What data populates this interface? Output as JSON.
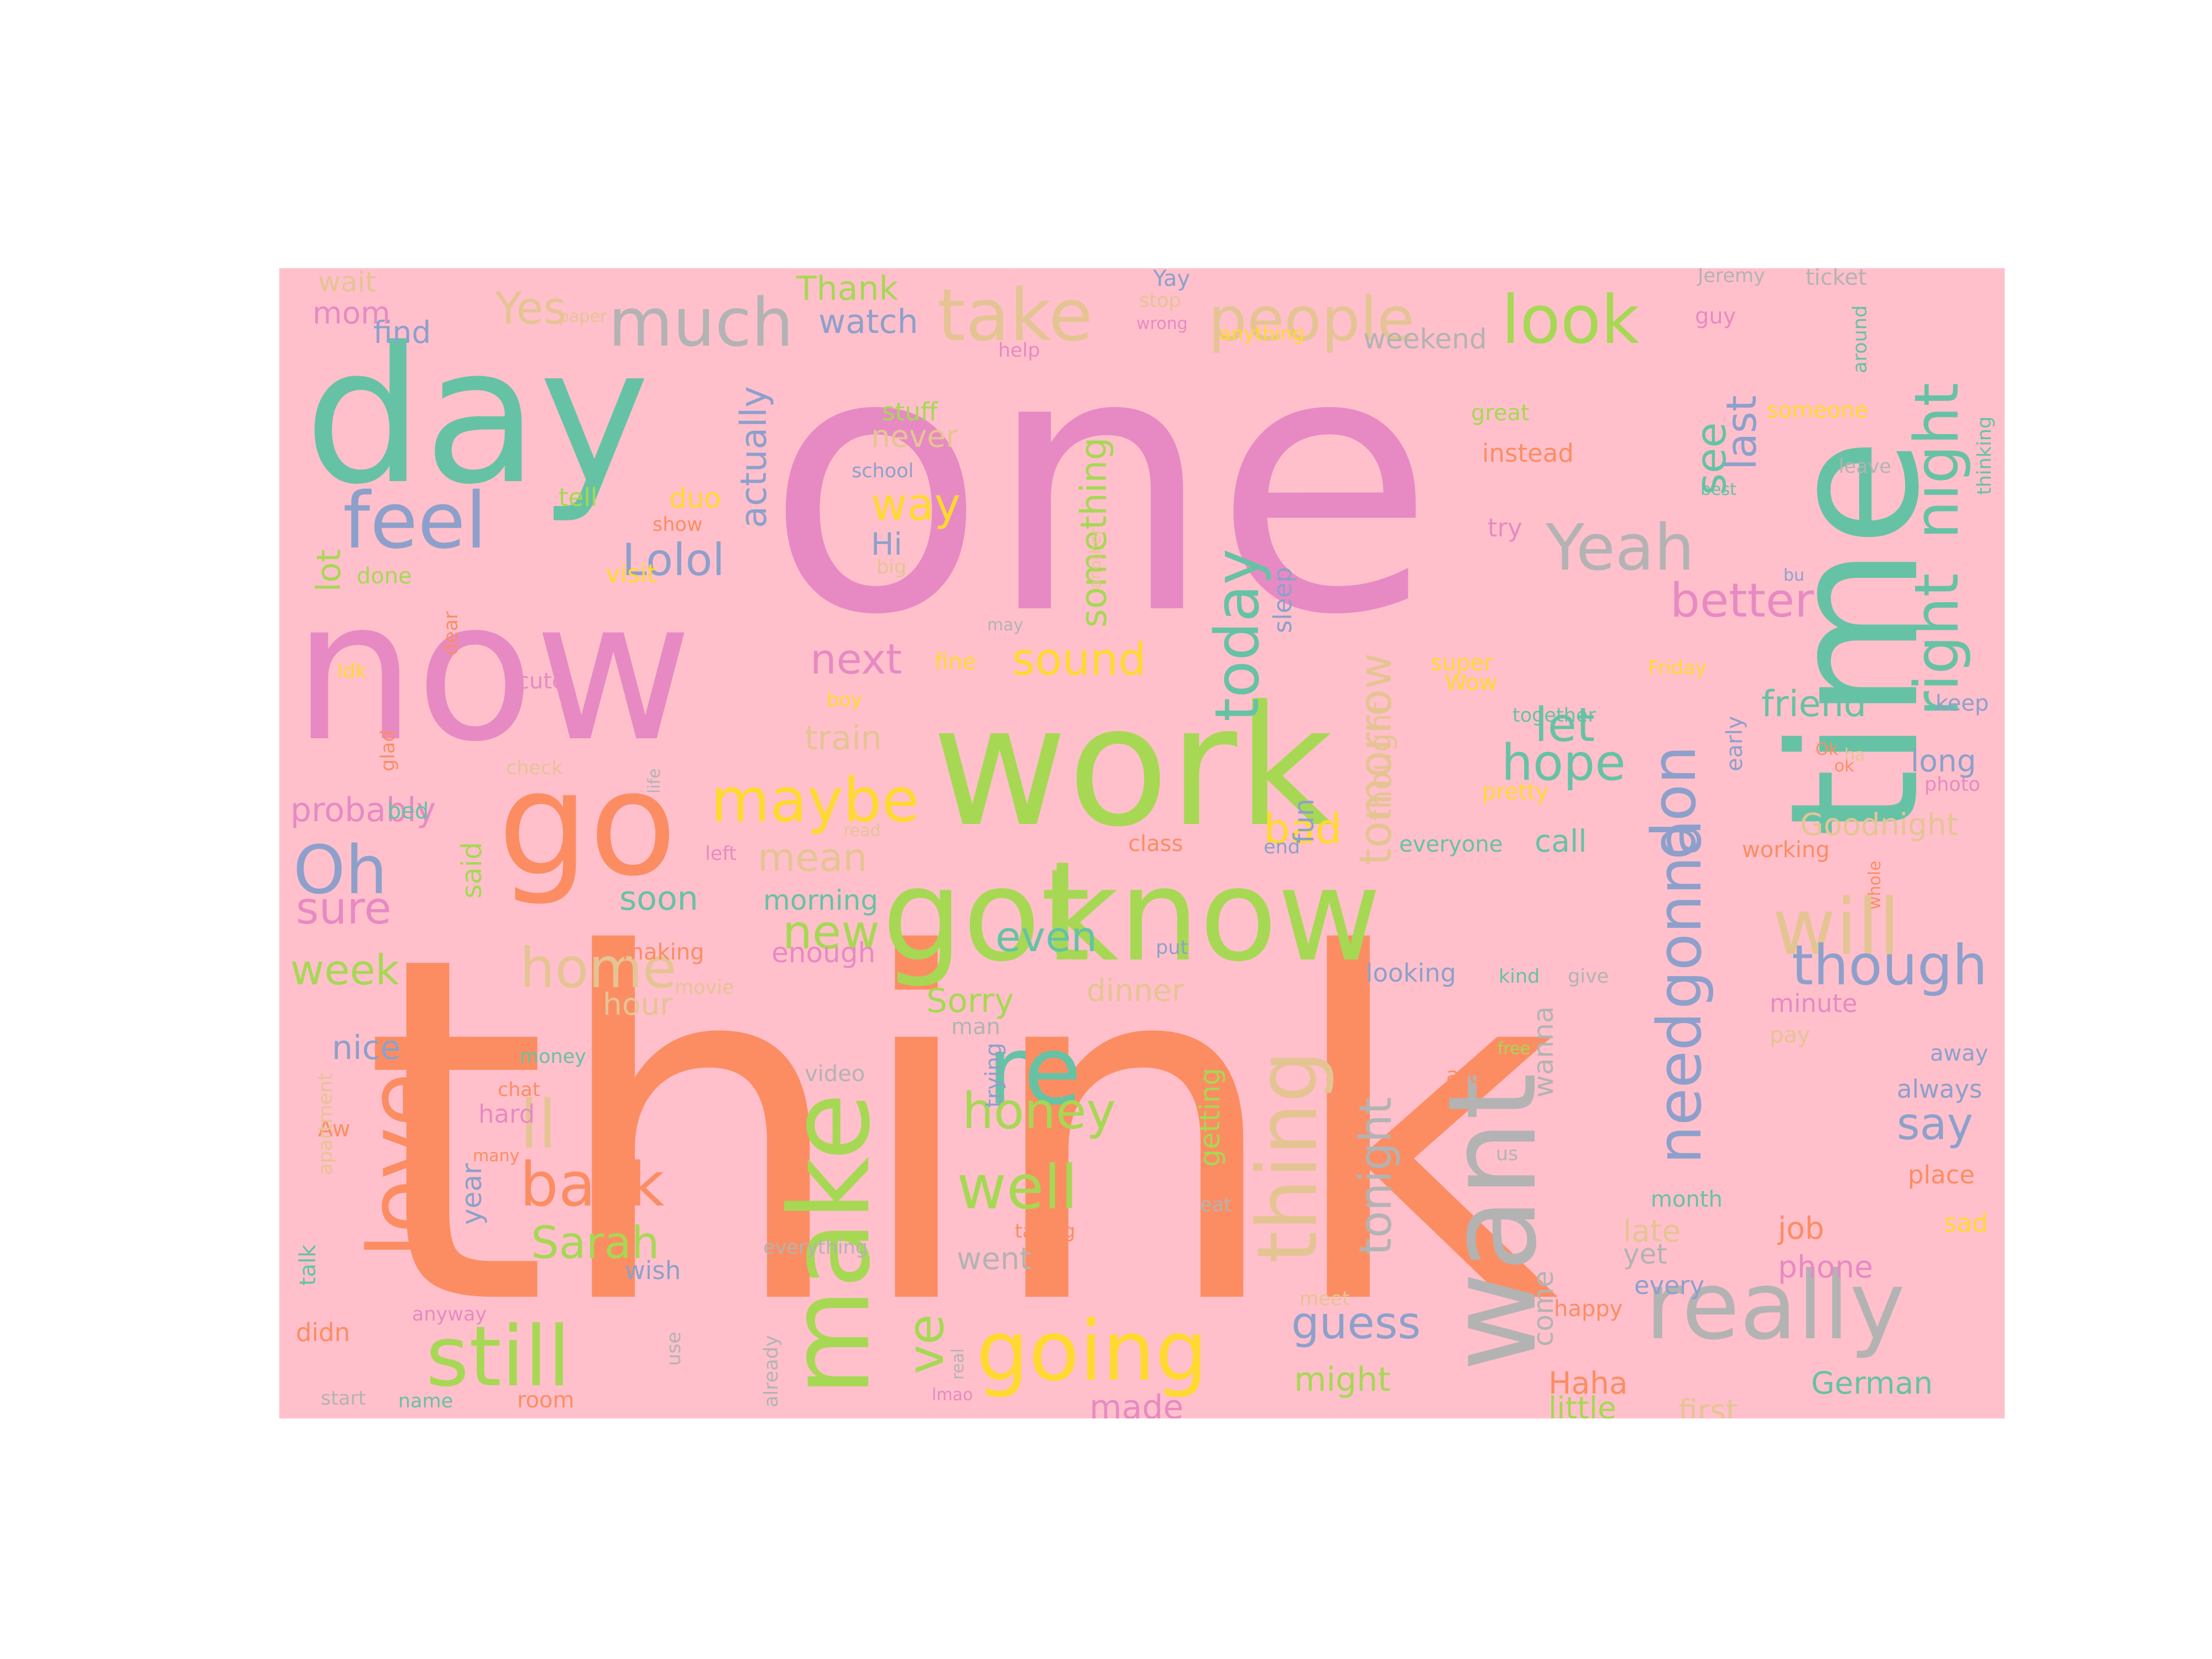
{
  "background": "#ffc0cb",
  "palette": {
    "orange": "#fc8d62",
    "pink": "#e78ac3",
    "teal": "#66c2a5",
    "green": "#a6d854",
    "blue": "#8da0cb",
    "yellow": "#ffd92f",
    "tan": "#e5c494",
    "gray": "#b3b3b3"
  },
  "words": [
    {
      "t": "think",
      "c": "orange",
      "h": false
    },
    {
      "t": "one",
      "c": "pink",
      "h": false
    },
    {
      "t": "work",
      "c": "green",
      "h": false
    },
    {
      "t": "now",
      "c": "pink",
      "h": false
    },
    {
      "t": "day",
      "c": "teal",
      "h": false
    },
    {
      "t": "time",
      "c": "teal",
      "h": true
    },
    {
      "t": "got",
      "c": "green",
      "h": false
    },
    {
      "t": "know",
      "c": "green",
      "h": false
    },
    {
      "t": "go",
      "c": "orange",
      "h": false
    },
    {
      "t": "want",
      "c": "gray",
      "h": true
    },
    {
      "t": "make",
      "c": "green",
      "h": true
    },
    {
      "t": "love",
      "c": "orange",
      "h": true
    },
    {
      "t": "really",
      "c": "gray",
      "h": false
    },
    {
      "t": "going",
      "c": "yellow",
      "h": false
    },
    {
      "t": "still",
      "c": "green",
      "h": false
    },
    {
      "t": "thing",
      "c": "tan",
      "h": true
    },
    {
      "t": "take",
      "c": "tan",
      "h": false
    },
    {
      "t": "much",
      "c": "gray",
      "h": false
    },
    {
      "t": "people",
      "c": "tan",
      "h": false
    },
    {
      "t": "look",
      "c": "green",
      "h": false
    },
    {
      "t": "feel",
      "c": "blue",
      "h": false
    },
    {
      "t": "Yeah",
      "c": "gray",
      "h": false
    },
    {
      "t": "right",
      "c": "teal",
      "h": true
    },
    {
      "t": "night",
      "c": "teal",
      "h": true
    },
    {
      "t": "today",
      "c": "teal",
      "h": true
    },
    {
      "t": "don",
      "c": "blue",
      "h": true
    },
    {
      "t": "re",
      "c": "teal",
      "h": false
    },
    {
      "t": "will",
      "c": "tan",
      "h": false
    },
    {
      "t": "maybe",
      "c": "yellow",
      "h": false
    },
    {
      "t": "Oh",
      "c": "blue",
      "h": false
    },
    {
      "t": "home",
      "c": "tan",
      "h": false
    },
    {
      "t": "ll",
      "c": "tan",
      "h": false
    },
    {
      "t": "back",
      "c": "orange",
      "h": false
    },
    {
      "t": "well",
      "c": "green",
      "h": false
    },
    {
      "t": "need",
      "c": "blue",
      "h": true
    },
    {
      "t": "gonna",
      "c": "blue",
      "h": true
    },
    {
      "t": "though",
      "c": "blue",
      "h": false
    },
    {
      "t": "say",
      "c": "blue",
      "h": false
    },
    {
      "t": "Sarah",
      "c": "green",
      "h": false
    },
    {
      "t": "honey",
      "c": "green",
      "h": false
    },
    {
      "t": "ve",
      "c": "green",
      "h": true
    },
    {
      "t": "guess",
      "c": "blue",
      "h": false
    },
    {
      "t": "tonight",
      "c": "gray",
      "h": true
    },
    {
      "t": "tomorrow",
      "c": "tan",
      "h": true
    },
    {
      "t": "hope",
      "c": "teal",
      "h": false
    },
    {
      "t": "let",
      "c": "teal",
      "h": false
    },
    {
      "t": "better",
      "c": "pink",
      "h": false
    },
    {
      "t": "see",
      "c": "teal",
      "h": true
    },
    {
      "t": "last",
      "c": "blue",
      "h": true
    },
    {
      "t": "Yes",
      "c": "tan",
      "h": false
    },
    {
      "t": "Lolol",
      "c": "blue",
      "h": false
    },
    {
      "t": "way",
      "c": "yellow",
      "h": false
    },
    {
      "t": "something",
      "c": "green",
      "h": true
    },
    {
      "t": "sound",
      "c": "yellow",
      "h": false
    },
    {
      "t": "next",
      "c": "pink",
      "h": false
    },
    {
      "t": "actually",
      "c": "blue",
      "h": true
    },
    {
      "t": "even",
      "c": "teal",
      "h": false
    },
    {
      "t": "new",
      "c": "green",
      "h": false
    },
    {
      "t": "mean",
      "c": "tan",
      "h": false
    },
    {
      "t": "sure",
      "c": "pink",
      "h": false
    },
    {
      "t": "week",
      "c": "green",
      "h": false
    },
    {
      "t": "probably",
      "c": "pink",
      "h": false
    },
    {
      "t": "lot",
      "c": "green",
      "h": true
    },
    {
      "t": "friend",
      "c": "teal",
      "h": false
    },
    {
      "t": "bad",
      "c": "yellow",
      "h": false
    },
    {
      "t": "might",
      "c": "green",
      "h": false
    },
    {
      "t": "come",
      "c": "gray",
      "h": true
    },
    {
      "t": "wanna",
      "c": "gray",
      "h": true
    },
    {
      "t": "Goodnight",
      "c": "tan",
      "h": false
    },
    {
      "t": "call",
      "c": "teal",
      "h": false
    },
    {
      "t": "long",
      "c": "blue",
      "h": false
    },
    {
      "t": "Haha",
      "c": "orange",
      "h": false
    },
    {
      "t": "little",
      "c": "green",
      "h": false
    },
    {
      "t": "first",
      "c": "tan",
      "h": false
    },
    {
      "t": "German",
      "c": "teal",
      "h": false
    },
    {
      "t": "made",
      "c": "pink",
      "h": false
    },
    {
      "t": "job",
      "c": "orange",
      "h": false
    },
    {
      "t": "phone",
      "c": "pink",
      "h": false
    },
    {
      "t": "late",
      "c": "tan",
      "h": false
    },
    {
      "t": "yet",
      "c": "gray",
      "h": false
    },
    {
      "t": "nice",
      "c": "blue",
      "h": false
    },
    {
      "t": "hour",
      "c": "tan",
      "h": false
    },
    {
      "t": "Sorry",
      "c": "green",
      "h": false
    },
    {
      "t": "dinner",
      "c": "tan",
      "h": false
    },
    {
      "t": "went",
      "c": "gray",
      "h": false
    },
    {
      "t": "soon",
      "c": "teal",
      "h": false
    },
    {
      "t": "morning",
      "c": "teal",
      "h": false
    },
    {
      "t": "enough",
      "c": "pink",
      "h": false
    },
    {
      "t": "watch",
      "c": "blue",
      "h": false
    },
    {
      "t": "Thank",
      "c": "green",
      "h": false
    },
    {
      "t": "find",
      "c": "blue",
      "h": false
    },
    {
      "t": "mom",
      "c": "pink",
      "h": false
    },
    {
      "t": "wait",
      "c": "tan",
      "h": false
    },
    {
      "t": "weekend",
      "c": "gray",
      "h": false
    },
    {
      "t": "Hi",
      "c": "blue",
      "h": false
    },
    {
      "t": "never",
      "c": "tan",
      "h": false
    },
    {
      "t": "stuff",
      "c": "green",
      "h": false
    },
    {
      "t": "duo",
      "c": "yellow",
      "h": false
    },
    {
      "t": "tell",
      "c": "green",
      "h": false
    },
    {
      "t": "visit",
      "c": "yellow",
      "h": false
    },
    {
      "t": "done",
      "c": "green",
      "h": false
    },
    {
      "t": "train",
      "c": "tan",
      "h": false
    },
    {
      "t": "fun",
      "c": "blue",
      "h": true
    },
    {
      "t": "thought",
      "c": "tan",
      "h": true
    },
    {
      "t": "sleep",
      "c": "blue",
      "h": true
    },
    {
      "t": "said",
      "c": "green",
      "h": true
    },
    {
      "t": "bed",
      "c": "teal",
      "h": false
    },
    {
      "t": "getting",
      "c": "green",
      "h": true
    },
    {
      "t": "trying",
      "c": "blue",
      "h": true
    },
    {
      "t": "year",
      "c": "blue",
      "h": true
    },
    {
      "t": "talk",
      "c": "teal",
      "h": true
    },
    {
      "t": "didn",
      "c": "orange",
      "h": false
    },
    {
      "t": "hard",
      "c": "pink",
      "h": false
    },
    {
      "t": "wish",
      "c": "blue",
      "h": false
    },
    {
      "t": "instead",
      "c": "orange",
      "h": false
    },
    {
      "t": "try",
      "c": "pink",
      "h": false
    },
    {
      "t": "great",
      "c": "green",
      "h": false
    },
    {
      "t": "someone",
      "c": "yellow",
      "h": false
    },
    {
      "t": "thinking",
      "c": "teal",
      "h": true
    },
    {
      "t": "keep",
      "c": "blue",
      "h": false
    },
    {
      "t": "photo",
      "c": "pink",
      "h": false
    },
    {
      "t": "working",
      "c": "orange",
      "h": false
    },
    {
      "t": "minute",
      "c": "pink",
      "h": false
    },
    {
      "t": "pay",
      "c": "tan",
      "h": false
    },
    {
      "t": "away",
      "c": "blue",
      "h": false
    },
    {
      "t": "always",
      "c": "blue",
      "h": false
    },
    {
      "t": "place",
      "c": "orange",
      "h": false
    },
    {
      "t": "sad",
      "c": "yellow",
      "h": false
    },
    {
      "t": "month",
      "c": "teal",
      "h": false
    },
    {
      "t": "every",
      "c": "blue",
      "h": false
    },
    {
      "t": "happy",
      "c": "orange",
      "h": false
    },
    {
      "t": "looking",
      "c": "blue",
      "h": false
    },
    {
      "t": "everyone",
      "c": "teal",
      "h": false
    },
    {
      "t": "pretty",
      "c": "yellow",
      "h": false
    },
    {
      "t": "together",
      "c": "teal",
      "h": false
    },
    {
      "t": "Wow",
      "c": "yellow",
      "h": false
    },
    {
      "t": "super",
      "c": "yellow",
      "h": false
    },
    {
      "t": "Friday",
      "c": "yellow",
      "h": false
    },
    {
      "t": "early",
      "c": "blue",
      "h": true
    },
    {
      "t": "class",
      "c": "orange",
      "h": false
    },
    {
      "t": "end",
      "c": "blue",
      "h": false
    },
    {
      "t": "put",
      "c": "blue",
      "h": false
    },
    {
      "t": "kind",
      "c": "teal",
      "h": false
    },
    {
      "t": "give",
      "c": "gray",
      "h": false
    },
    {
      "t": "free",
      "c": "green",
      "h": false
    },
    {
      "t": "art",
      "c": "orange",
      "h": false
    },
    {
      "t": "us",
      "c": "gray",
      "h": false
    },
    {
      "t": "eat",
      "c": "gray",
      "h": false
    },
    {
      "t": "man",
      "c": "gray",
      "h": false
    },
    {
      "t": "video",
      "c": "gray",
      "h": false
    },
    {
      "t": "money",
      "c": "teal",
      "h": false
    },
    {
      "t": "chat",
      "c": "orange",
      "h": false
    },
    {
      "t": "many",
      "c": "orange",
      "h": false
    },
    {
      "t": "taking",
      "c": "orange",
      "h": false
    },
    {
      "t": "everything",
      "c": "gray",
      "h": false
    },
    {
      "t": "already",
      "c": "gray",
      "h": true
    },
    {
      "t": "real",
      "c": "gray",
      "h": true
    },
    {
      "t": "lmao",
      "c": "pink",
      "h": false
    },
    {
      "t": "room",
      "c": "orange",
      "h": false
    },
    {
      "t": "name",
      "c": "teal",
      "h": false
    },
    {
      "t": "start",
      "c": "gray",
      "h": false
    },
    {
      "t": "use",
      "c": "gray",
      "h": true
    },
    {
      "t": "anyway",
      "c": "pink",
      "h": false
    },
    {
      "t": "meet",
      "c": "tan",
      "h": false
    },
    {
      "t": "Aw",
      "c": "orange",
      "h": false
    },
    {
      "t": "apartment",
      "c": "tan",
      "h": true
    },
    {
      "t": "movie",
      "c": "tan",
      "h": false
    },
    {
      "t": "making",
      "c": "orange",
      "h": false
    },
    {
      "t": "left",
      "c": "pink",
      "h": false
    },
    {
      "t": "read",
      "c": "tan",
      "h": false
    },
    {
      "t": "check",
      "c": "tan",
      "h": false
    },
    {
      "t": "life",
      "c": "gray",
      "h": true
    },
    {
      "t": "glad",
      "c": "orange",
      "h": true
    },
    {
      "t": "Idk",
      "c": "yellow",
      "h": false
    },
    {
      "t": "cute",
      "c": "pink",
      "h": false
    },
    {
      "t": "dear",
      "c": "orange",
      "h": true
    },
    {
      "t": "boy",
      "c": "yellow",
      "h": false
    },
    {
      "t": "fine",
      "c": "yellow",
      "h": false
    },
    {
      "t": "may",
      "c": "gray",
      "h": false
    },
    {
      "t": "big",
      "c": "tan",
      "h": false
    },
    {
      "t": "show",
      "c": "orange",
      "h": false
    },
    {
      "t": "school",
      "c": "blue",
      "h": false
    },
    {
      "t": "paper",
      "c": "tan",
      "h": false
    },
    {
      "t": "help",
      "c": "pink",
      "h": false
    },
    {
      "t": "stop",
      "c": "tan",
      "h": false
    },
    {
      "t": "wrong",
      "c": "pink",
      "h": false
    },
    {
      "t": "Yay",
      "c": "blue",
      "h": false
    },
    {
      "t": "anything",
      "c": "yellow",
      "h": false
    },
    {
      "t": "another",
      "c": "tan",
      "h": true
    },
    {
      "t": "Jeremy",
      "c": "gray",
      "h": false
    },
    {
      "t": "ticket",
      "c": "gray",
      "h": false
    },
    {
      "t": "guy",
      "c": "pink",
      "h": false
    },
    {
      "t": "around",
      "c": "teal",
      "h": true
    },
    {
      "t": "leave",
      "c": "gray",
      "h": false
    },
    {
      "t": "best",
      "c": "teal",
      "h": false
    },
    {
      "t": "bu",
      "c": "blue",
      "h": false
    },
    {
      "t": "whole",
      "c": "orange",
      "h": true
    },
    {
      "t": "ok",
      "c": "orange",
      "h": false
    },
    {
      "t": "Ok",
      "c": "orange",
      "h": false
    },
    {
      "t": "ha",
      "c": "tan",
      "h": false
    }
  ]
}
